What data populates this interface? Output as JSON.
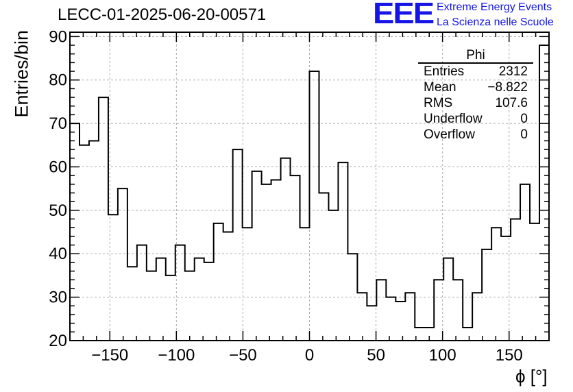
{
  "title": "LECC-01-2025-06-20-00571",
  "logo": {
    "mark": "EEE",
    "line1": "Extreme Energy Events",
    "line2": "La Scienza nelle Scuole",
    "color": "#1515e8"
  },
  "stats_box": {
    "name": "Phi",
    "rows": [
      {
        "label": "Entries",
        "value": "2312"
      },
      {
        "label": "Mean",
        "value": "−8.822"
      },
      {
        "label": "RMS",
        "value": "107.6"
      },
      {
        "label": "Underflow",
        "value": "0"
      },
      {
        "label": "Overflow",
        "value": "0"
      }
    ]
  },
  "chart_data": {
    "type": "histogram",
    "title": "LECC-01-2025-06-20-00571",
    "xlabel": "ϕ [°]",
    "ylabel": "Entries/bin",
    "xlim": [
      -180,
      180
    ],
    "ylim": [
      20,
      91
    ],
    "bin_width": 7.2,
    "xticks": [
      -150,
      -100,
      -50,
      0,
      50,
      100,
      150
    ],
    "xtick_labels": [
      "−150",
      "−100",
      "−50",
      "0",
      "50",
      "100",
      "150"
    ],
    "yticks": [
      20,
      30,
      40,
      50,
      60,
      70,
      80,
      90
    ],
    "ytick_labels": [
      "20",
      "30",
      "40",
      "50",
      "60",
      "70",
      "80",
      "90"
    ],
    "grid": true,
    "bin_edges_start": -180,
    "values": [
      70,
      65,
      66,
      76,
      49,
      55,
      37,
      42,
      36,
      39,
      35,
      42,
      36,
      39,
      38,
      47,
      45,
      64,
      46,
      59,
      56,
      57,
      62,
      58,
      46,
      82,
      54,
      50,
      61,
      40,
      31,
      28,
      34,
      30,
      29,
      31,
      23,
      23,
      34,
      39,
      34,
      23,
      31,
      41,
      46,
      44,
      48,
      56,
      47,
      88
    ]
  }
}
